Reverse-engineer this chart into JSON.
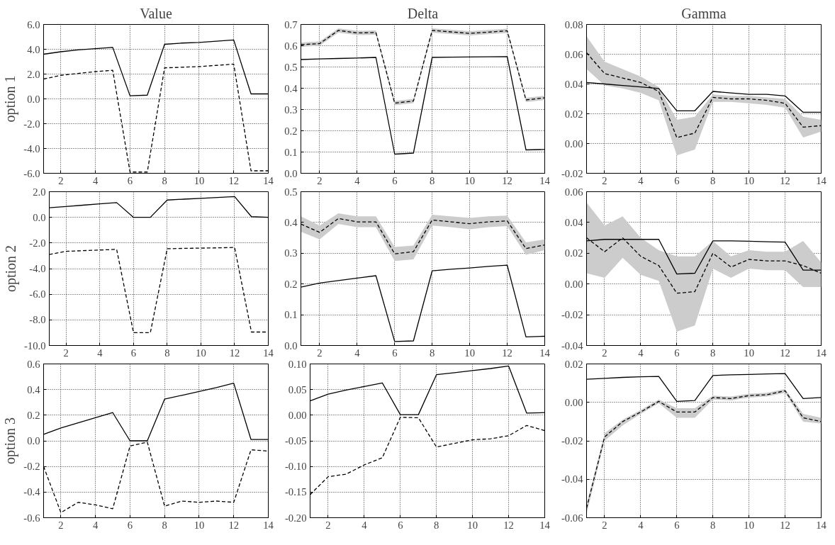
{
  "chart_data": [
    {
      "type": "line",
      "title": "Value",
      "ylabel": "option 1",
      "x": [
        1,
        2,
        3,
        4,
        5,
        6,
        7,
        8,
        9,
        10,
        11,
        12,
        13,
        14
      ],
      "xlim": [
        1,
        14
      ],
      "xticks": [
        2,
        4,
        6,
        8,
        10,
        12,
        14
      ],
      "ylim": [
        -6,
        6
      ],
      "yticks": [
        {
          "value": -6,
          "label": "-6.0"
        },
        {
          "value": -4,
          "label": "-4.0"
        },
        {
          "value": -2,
          "label": "-2.0"
        },
        {
          "value": 0,
          "label": "0.0"
        },
        {
          "value": 2,
          "label": "2.0"
        },
        {
          "value": 4,
          "label": "4.0"
        },
        {
          "value": 6,
          "label": "6.0"
        }
      ],
      "grid": true,
      "series": [
        {
          "color": "#000000",
          "line_style": "solid",
          "values": [
            3.6,
            3.8,
            3.95,
            4.05,
            4.15,
            0.25,
            0.3,
            4.4,
            4.5,
            4.55,
            4.65,
            4.75,
            0.4,
            0.4
          ]
        },
        {
          "color": "#000000",
          "line_style": "dashed",
          "values": [
            1.6,
            1.9,
            2.05,
            2.2,
            2.3,
            -5.9,
            -5.9,
            2.5,
            2.55,
            2.6,
            2.7,
            2.8,
            -5.8,
            -5.8
          ]
        }
      ]
    },
    {
      "type": "line",
      "title": "Delta",
      "x": [
        1,
        2,
        3,
        4,
        5,
        6,
        7,
        8,
        9,
        10,
        11,
        12,
        13,
        14
      ],
      "xlim": [
        1,
        14
      ],
      "xticks": [
        2,
        4,
        6,
        8,
        10,
        12,
        14
      ],
      "ylim": [
        0,
        0.7
      ],
      "yticks": [
        {
          "value": 0,
          "label": "0.0"
        },
        0.1,
        0.2,
        0.3,
        0.4,
        0.5,
        0.6,
        0.7
      ],
      "grid": true,
      "series": [
        {
          "color": "#000000",
          "line_style": "solid",
          "values": [
            0.535,
            0.538,
            0.54,
            0.542,
            0.545,
            0.09,
            0.095,
            0.545,
            0.546,
            0.547,
            0.548,
            0.549,
            0.11,
            0.112
          ]
        },
        {
          "color": "#000000",
          "line_style": "dashed",
          "values": [
            0.605,
            0.61,
            0.672,
            0.66,
            0.662,
            0.33,
            0.34,
            0.672,
            0.665,
            0.658,
            0.664,
            0.67,
            0.345,
            0.355
          ],
          "lower": [
            0.595,
            0.6,
            0.662,
            0.65,
            0.652,
            0.32,
            0.33,
            0.662,
            0.655,
            0.648,
            0.654,
            0.66,
            0.335,
            0.345
          ],
          "upper": [
            0.615,
            0.62,
            0.682,
            0.67,
            0.672,
            0.34,
            0.35,
            0.682,
            0.675,
            0.668,
            0.674,
            0.68,
            0.355,
            0.365
          ]
        }
      ]
    },
    {
      "type": "line",
      "title": "Gamma",
      "x": [
        1,
        2,
        3,
        4,
        5,
        6,
        7,
        8,
        9,
        10,
        11,
        12,
        13,
        14
      ],
      "xlim": [
        1,
        14
      ],
      "xticks": [
        2,
        4,
        6,
        8,
        10,
        12,
        14
      ],
      "ylim": [
        -0.02,
        0.08
      ],
      "yticks": [
        -0.02,
        {
          "value": 0,
          "label": "0.00"
        },
        0.02,
        0.04,
        0.06,
        0.08
      ],
      "grid": true,
      "series": [
        {
          "color": "#000000",
          "line_style": "solid",
          "values": [
            0.041,
            0.04,
            0.039,
            0.038,
            0.037,
            0.022,
            0.022,
            0.035,
            0.034,
            0.033,
            0.033,
            0.032,
            0.021,
            0.021
          ]
        },
        {
          "color": "#000000",
          "line_style": "dashed",
          "values": [
            0.061,
            0.047,
            0.044,
            0.041,
            0.035,
            0.004,
            0.007,
            0.031,
            0.03,
            0.03,
            0.029,
            0.027,
            0.011,
            0.012
          ],
          "lower": [
            0.05,
            0.039,
            0.037,
            0.034,
            0.029,
            -0.008,
            -0.004,
            0.028,
            0.028,
            0.027,
            0.026,
            0.024,
            0.004,
            0.008
          ],
          "upper": [
            0.072,
            0.055,
            0.05,
            0.045,
            0.038,
            0.016,
            0.018,
            0.033,
            0.032,
            0.032,
            0.031,
            0.03,
            0.018,
            0.016
          ]
        }
      ]
    },
    {
      "type": "line",
      "ylabel": "option 2",
      "x": [
        1,
        2,
        3,
        4,
        5,
        6,
        7,
        8,
        9,
        10,
        11,
        12,
        13,
        14
      ],
      "xlim": [
        1,
        14
      ],
      "xticks": [
        2,
        4,
        6,
        8,
        10,
        12,
        14
      ],
      "ylim": [
        -10,
        2
      ],
      "yticks": [
        {
          "value": -10,
          "label": "-10.0"
        },
        {
          "value": -8,
          "label": "-8.0"
        },
        {
          "value": -6,
          "label": "-6.0"
        },
        {
          "value": -4,
          "label": "-4.0"
        },
        {
          "value": -2,
          "label": "-2.0"
        },
        {
          "value": 0,
          "label": "0.0"
        },
        {
          "value": 2,
          "label": "2.0"
        }
      ],
      "grid": true,
      "series": [
        {
          "color": "#000000",
          "line_style": "solid",
          "values": [
            0.75,
            0.85,
            0.95,
            1.05,
            1.15,
            0.0,
            0.0,
            1.35,
            1.42,
            1.48,
            1.55,
            1.62,
            0.05,
            0.0
          ]
        },
        {
          "color": "#000000",
          "line_style": "dashed",
          "values": [
            -2.9,
            -2.65,
            -2.6,
            -2.55,
            -2.5,
            -9.0,
            -9.0,
            -2.45,
            -2.42,
            -2.4,
            -2.38,
            -2.35,
            -8.95,
            -8.95
          ]
        }
      ]
    },
    {
      "type": "line",
      "x": [
        1,
        2,
        3,
        4,
        5,
        6,
        7,
        8,
        9,
        10,
        11,
        12,
        13,
        14
      ],
      "xlim": [
        1,
        14
      ],
      "xticks": [
        2,
        4,
        6,
        8,
        10,
        12,
        14
      ],
      "ylim": [
        0,
        0.5
      ],
      "yticks": [
        {
          "value": 0,
          "label": "0.0"
        },
        0.1,
        0.2,
        0.3,
        0.4,
        0.5
      ],
      "grid": true,
      "series": [
        {
          "color": "#000000",
          "line_style": "solid",
          "values": [
            0.19,
            0.203,
            0.211,
            0.219,
            0.227,
            0.013,
            0.015,
            0.243,
            0.248,
            0.252,
            0.257,
            0.261,
            0.028,
            0.03
          ]
        },
        {
          "color": "#000000",
          "line_style": "dashed",
          "values": [
            0.395,
            0.368,
            0.413,
            0.402,
            0.402,
            0.298,
            0.305,
            0.408,
            0.402,
            0.396,
            0.402,
            0.405,
            0.315,
            0.327
          ],
          "lower": [
            0.37,
            0.345,
            0.395,
            0.385,
            0.385,
            0.275,
            0.28,
            0.39,
            0.385,
            0.378,
            0.385,
            0.388,
            0.295,
            0.31
          ],
          "upper": [
            0.42,
            0.39,
            0.43,
            0.42,
            0.42,
            0.32,
            0.325,
            0.425,
            0.42,
            0.415,
            0.42,
            0.422,
            0.335,
            0.345
          ]
        }
      ]
    },
    {
      "type": "line",
      "x": [
        1,
        2,
        3,
        4,
        5,
        6,
        7,
        8,
        9,
        10,
        11,
        12,
        13,
        14
      ],
      "xlim": [
        1,
        14
      ],
      "xticks": [
        2,
        4,
        6,
        8,
        10,
        12,
        14
      ],
      "ylim": [
        -0.04,
        0.06
      ],
      "yticks": [
        -0.04,
        -0.02,
        {
          "value": 0,
          "label": "0.00"
        },
        0.02,
        0.04,
        0.06
      ],
      "grid": true,
      "series": [
        {
          "color": "#000000",
          "line_style": "solid",
          "values": [
            0.028,
            0.029,
            0.029,
            0.029,
            0.029,
            0.0065,
            0.007,
            0.028,
            0.028,
            0.0278,
            0.0275,
            0.0272,
            0.009,
            0.009
          ]
        },
        {
          "color": "#000000",
          "line_style": "dashed",
          "values": [
            0.03,
            0.021,
            0.03,
            0.018,
            0.012,
            -0.006,
            -0.005,
            0.02,
            0.011,
            0.016,
            0.015,
            0.015,
            0.012,
            0.007
          ],
          "lower": [
            0.007,
            0.004,
            0.017,
            0.006,
            0.002,
            -0.031,
            -0.027,
            0.01,
            0.004,
            0.01,
            0.009,
            0.009,
            -0.002,
            -0.002
          ],
          "upper": [
            0.053,
            0.038,
            0.044,
            0.03,
            0.022,
            0.018,
            0.018,
            0.028,
            0.018,
            0.022,
            0.021,
            0.021,
            0.028,
            0.014
          ]
        }
      ]
    },
    {
      "type": "line",
      "ylabel": "option 3",
      "x": [
        1,
        2,
        3,
        4,
        5,
        6,
        7,
        8,
        9,
        10,
        11,
        12,
        13,
        14
      ],
      "xlim": [
        1,
        14
      ],
      "xticks": [
        2,
        4,
        6,
        8,
        10,
        12,
        14
      ],
      "ylim": [
        -0.6,
        0.6
      ],
      "yticks": [
        -0.6,
        -0.4,
        -0.2,
        {
          "value": 0,
          "label": "0.0"
        },
        0.2,
        0.4,
        0.6
      ],
      "grid": true,
      "series": [
        {
          "color": "#000000",
          "line_style": "solid",
          "values": [
            0.05,
            0.1,
            0.14,
            0.18,
            0.22,
            0.0,
            0.0,
            0.325,
            0.355,
            0.385,
            0.415,
            0.45,
            0.01,
            0.01
          ]
        },
        {
          "color": "#000000",
          "line_style": "dashed",
          "values": [
            -0.2,
            -0.56,
            -0.48,
            -0.5,
            -0.53,
            -0.04,
            -0.01,
            -0.51,
            -0.47,
            -0.48,
            -0.47,
            -0.48,
            -0.07,
            -0.08
          ]
        }
      ]
    },
    {
      "type": "line",
      "x": [
        1,
        2,
        3,
        4,
        5,
        6,
        7,
        8,
        9,
        10,
        11,
        12,
        13,
        14
      ],
      "xlim": [
        1,
        14
      ],
      "xticks": [
        2,
        4,
        6,
        8,
        10,
        12,
        14
      ],
      "ylim": [
        -0.2,
        0.1
      ],
      "yticks": [
        {
          "value": -0.2,
          "label": "-0.20"
        },
        -0.15,
        {
          "value": -0.1,
          "label": "-0.10"
        },
        -0.05,
        {
          "value": 0,
          "label": "0.00"
        },
        0.05,
        {
          "value": 0.1,
          "label": "0.10"
        }
      ],
      "grid": true,
      "series": [
        {
          "color": "#000000",
          "line_style": "solid",
          "values": [
            0.028,
            0.041,
            0.049,
            0.056,
            0.063,
            0.001,
            0.001,
            0.079,
            0.083,
            0.087,
            0.091,
            0.096,
            0.004,
            0.005
          ]
        },
        {
          "color": "#000000",
          "line_style": "dashed",
          "values": [
            -0.155,
            -0.12,
            -0.115,
            -0.097,
            -0.083,
            -0.004,
            -0.005,
            -0.062,
            -0.055,
            -0.048,
            -0.046,
            -0.04,
            -0.02,
            -0.03
          ]
        }
      ]
    },
    {
      "type": "line",
      "x": [
        1,
        2,
        3,
        4,
        5,
        6,
        7,
        8,
        9,
        10,
        11,
        12,
        13,
        14
      ],
      "xlim": [
        1,
        14
      ],
      "xticks": [
        2,
        4,
        6,
        8,
        10,
        12,
        14
      ],
      "ylim": [
        -0.06,
        0.02
      ],
      "yticks": [
        -0.06,
        -0.04,
        -0.02,
        {
          "value": 0,
          "label": "0.00"
        },
        0.02
      ],
      "grid": true,
      "series": [
        {
          "color": "#000000",
          "line_style": "solid",
          "values": [
            0.012,
            0.0125,
            0.013,
            0.0133,
            0.0135,
            0.0005,
            0.001,
            0.014,
            0.0143,
            0.0145,
            0.0148,
            0.015,
            0.002,
            0.0025
          ]
        },
        {
          "color": "#000000",
          "line_style": "dashed",
          "values": [
            -0.055,
            -0.018,
            -0.01,
            -0.005,
            0.0005,
            -0.005,
            -0.005,
            0.0025,
            0.002,
            0.0035,
            0.004,
            0.006,
            -0.008,
            -0.01
          ],
          "lower": [
            -0.058,
            -0.02,
            -0.012,
            -0.006,
            -0.0005,
            -0.008,
            -0.008,
            0.0015,
            0.001,
            0.0025,
            0.003,
            0.005,
            -0.01,
            -0.011
          ],
          "upper": [
            -0.053,
            -0.016,
            -0.009,
            -0.004,
            0.0015,
            -0.003,
            -0.003,
            0.0035,
            0.003,
            0.0045,
            0.005,
            0.007,
            -0.006,
            -0.008
          ]
        }
      ]
    }
  ]
}
